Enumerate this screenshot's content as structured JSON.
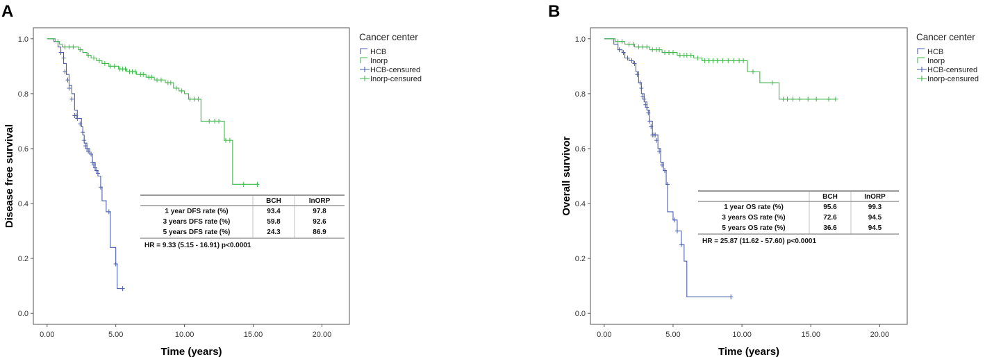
{
  "chart_data": [
    {
      "panel": "A",
      "type": "line",
      "xlabel": "Time (years)",
      "ylabel": "Disease free survival",
      "x_ticks": [
        "0.00",
        "5.00",
        "10.00",
        "15.00",
        "20.00"
      ],
      "y_ticks": [
        "0.0",
        "0.2",
        "0.4",
        "0.6",
        "0.8",
        "1.0"
      ],
      "xlim": [
        -1,
        22
      ],
      "ylim": [
        -0.04,
        1.04
      ],
      "legend": {
        "title": "Cancer center",
        "entries": [
          "HCB",
          "Inorp",
          "HCB-censured",
          "Inorp-censured"
        ]
      },
      "colors": {
        "HCB": "#4a5fad",
        "Inorp": "#3fb84a"
      },
      "series": [
        {
          "name": "HCB",
          "steps": [
            [
              0,
              1.0
            ],
            [
              0.5,
              0.99
            ],
            [
              0.8,
              0.97
            ],
            [
              1.0,
              0.95
            ],
            [
              1.2,
              0.91
            ],
            [
              1.4,
              0.87
            ],
            [
              1.6,
              0.83
            ],
            [
              1.8,
              0.8
            ],
            [
              2.0,
              0.74
            ],
            [
              2.2,
              0.71
            ],
            [
              2.5,
              0.68
            ],
            [
              2.6,
              0.65
            ],
            [
              2.7,
              0.62
            ],
            [
              2.9,
              0.6
            ],
            [
              3.1,
              0.58
            ],
            [
              3.3,
              0.55
            ],
            [
              3.5,
              0.52
            ],
            [
              3.7,
              0.5
            ],
            [
              3.9,
              0.46
            ],
            [
              4.0,
              0.41
            ],
            [
              4.3,
              0.37
            ],
            [
              4.6,
              0.24
            ],
            [
              5.0,
              0.18
            ],
            [
              5.1,
              0.09
            ]
          ],
          "end_x": 5.6,
          "censored": [
            [
              1.0,
              0.95
            ],
            [
              1.2,
              0.93
            ],
            [
              1.3,
              0.88
            ],
            [
              1.5,
              0.85
            ],
            [
              1.6,
              0.82
            ],
            [
              1.8,
              0.78
            ],
            [
              2.0,
              0.72
            ],
            [
              2.1,
              0.72
            ],
            [
              2.2,
              0.71
            ],
            [
              2.4,
              0.69
            ],
            [
              2.6,
              0.66
            ],
            [
              2.7,
              0.63
            ],
            [
              2.8,
              0.61
            ],
            [
              2.9,
              0.6
            ],
            [
              3.0,
              0.59
            ],
            [
              3.2,
              0.58
            ],
            [
              3.3,
              0.55
            ],
            [
              3.4,
              0.54
            ],
            [
              3.5,
              0.53
            ],
            [
              3.6,
              0.52
            ],
            [
              3.7,
              0.51
            ],
            [
              3.9,
              0.46
            ],
            [
              4.5,
              0.37
            ],
            [
              5.0,
              0.18
            ],
            [
              5.5,
              0.09
            ]
          ]
        },
        {
          "name": "Inorp",
          "steps": [
            [
              0,
              1.0
            ],
            [
              0.6,
              0.99
            ],
            [
              0.9,
              0.98
            ],
            [
              1.1,
              0.97
            ],
            [
              2.3,
              0.96
            ],
            [
              2.6,
              0.95
            ],
            [
              2.9,
              0.94
            ],
            [
              3.2,
              0.93
            ],
            [
              3.6,
              0.92
            ],
            [
              4.0,
              0.91
            ],
            [
              4.5,
              0.9
            ],
            [
              5.2,
              0.89
            ],
            [
              5.8,
              0.88
            ],
            [
              6.5,
              0.87
            ],
            [
              7.2,
              0.86
            ],
            [
              7.8,
              0.85
            ],
            [
              8.6,
              0.84
            ],
            [
              9.2,
              0.82
            ],
            [
              9.6,
              0.81
            ],
            [
              10.0,
              0.8
            ],
            [
              10.3,
              0.78
            ],
            [
              11.0,
              0.78
            ],
            [
              11.2,
              0.7
            ],
            [
              12.7,
              0.7
            ],
            [
              12.9,
              0.63
            ],
            [
              13.5,
              0.47
            ]
          ],
          "end_x": 15.3,
          "censored": [
            [
              0.8,
              0.99
            ],
            [
              1.3,
              0.97
            ],
            [
              1.6,
              0.97
            ],
            [
              1.9,
              0.97
            ],
            [
              2.4,
              0.96
            ],
            [
              3.0,
              0.94
            ],
            [
              3.4,
              0.93
            ],
            [
              3.8,
              0.92
            ],
            [
              4.2,
              0.91
            ],
            [
              4.6,
              0.9
            ],
            [
              4.9,
              0.9
            ],
            [
              5.3,
              0.89
            ],
            [
              5.5,
              0.89
            ],
            [
              5.7,
              0.89
            ],
            [
              6.0,
              0.88
            ],
            [
              6.2,
              0.88
            ],
            [
              6.4,
              0.88
            ],
            [
              6.8,
              0.87
            ],
            [
              7.0,
              0.87
            ],
            [
              7.4,
              0.86
            ],
            [
              7.6,
              0.86
            ],
            [
              8.0,
              0.85
            ],
            [
              8.3,
              0.85
            ],
            [
              8.8,
              0.84
            ],
            [
              9.0,
              0.84
            ],
            [
              9.4,
              0.82
            ],
            [
              9.8,
              0.81
            ],
            [
              10.4,
              0.78
            ],
            [
              10.7,
              0.78
            ],
            [
              11.0,
              0.78
            ],
            [
              11.8,
              0.7
            ],
            [
              12.2,
              0.7
            ],
            [
              12.5,
              0.7
            ],
            [
              13.0,
              0.63
            ],
            [
              13.3,
              0.63
            ],
            [
              14.3,
              0.47
            ],
            [
              15.3,
              0.47
            ]
          ]
        }
      ],
      "table": {
        "headers": [
          "",
          "BCH",
          "InORP"
        ],
        "rows": [
          [
            "1 year DFS rate (%)",
            "93.4",
            "97.8"
          ],
          [
            "3 years DFS rate (%)",
            "59.8",
            "92.6"
          ],
          [
            "5 years DFS rate (%)",
            "24.3",
            "86.9"
          ]
        ],
        "footer": "HR = 9.33 (5.15 - 16.91) p<0.0001"
      }
    },
    {
      "panel": "B",
      "type": "line",
      "xlabel": "Time (years)",
      "ylabel": "Overall survivor",
      "x_ticks": [
        "0.00",
        "5.00",
        "10.00",
        "15.00",
        "20.00"
      ],
      "y_ticks": [
        "0.0",
        "0.2",
        "0.4",
        "0.6",
        "0.8",
        "1.0"
      ],
      "xlim": [
        -1,
        22
      ],
      "ylim": [
        -0.04,
        1.04
      ],
      "legend": {
        "title": "Cancer center",
        "entries": [
          "HCB",
          "Inorp",
          "HCB-censured",
          "Inorp-censured"
        ]
      },
      "colors": {
        "HCB": "#4a5fad",
        "Inorp": "#3fb84a"
      },
      "series": [
        {
          "name": "HCB",
          "steps": [
            [
              0,
              1.0
            ],
            [
              0.7,
              0.98
            ],
            [
              1.0,
              0.96
            ],
            [
              1.3,
              0.95
            ],
            [
              1.5,
              0.93
            ],
            [
              1.8,
              0.92
            ],
            [
              2.1,
              0.91
            ],
            [
              2.3,
              0.88
            ],
            [
              2.5,
              0.84
            ],
            [
              2.7,
              0.8
            ],
            [
              2.9,
              0.77
            ],
            [
              3.1,
              0.74
            ],
            [
              3.3,
              0.7
            ],
            [
              3.5,
              0.65
            ],
            [
              3.9,
              0.6
            ],
            [
              4.1,
              0.55
            ],
            [
              4.3,
              0.52
            ],
            [
              4.5,
              0.47
            ],
            [
              4.6,
              0.37
            ],
            [
              5.0,
              0.34
            ],
            [
              5.3,
              0.3
            ],
            [
              5.6,
              0.25
            ],
            [
              5.8,
              0.19
            ],
            [
              6.0,
              0.06
            ]
          ],
          "end_x": 9.2,
          "censored": [
            [
              1.1,
              0.96
            ],
            [
              1.4,
              0.95
            ],
            [
              1.7,
              0.93
            ],
            [
              2.0,
              0.92
            ],
            [
              2.2,
              0.91
            ],
            [
              2.4,
              0.87
            ],
            [
              2.6,
              0.84
            ],
            [
              2.7,
              0.82
            ],
            [
              2.8,
              0.79
            ],
            [
              2.9,
              0.78
            ],
            [
              3.0,
              0.76
            ],
            [
              3.1,
              0.75
            ],
            [
              3.2,
              0.73
            ],
            [
              3.3,
              0.7
            ],
            [
              3.4,
              0.68
            ],
            [
              3.5,
              0.65
            ],
            [
              3.6,
              0.65
            ],
            [
              3.7,
              0.65
            ],
            [
              3.8,
              0.63
            ],
            [
              4.0,
              0.59
            ],
            [
              4.2,
              0.54
            ],
            [
              4.4,
              0.52
            ],
            [
              4.6,
              0.47
            ],
            [
              5.1,
              0.34
            ],
            [
              5.3,
              0.3
            ],
            [
              5.6,
              0.25
            ],
            [
              9.2,
              0.06
            ]
          ]
        },
        {
          "name": "Inorp",
          "steps": [
            [
              0,
              1.0
            ],
            [
              0.8,
              0.99
            ],
            [
              1.5,
              0.98
            ],
            [
              2.2,
              0.97
            ],
            [
              3.3,
              0.96
            ],
            [
              4.2,
              0.95
            ],
            [
              5.3,
              0.94
            ],
            [
              6.5,
              0.93
            ],
            [
              7.1,
              0.92
            ],
            [
              10.2,
              0.92
            ],
            [
              10.4,
              0.88
            ],
            [
              11.2,
              0.88
            ],
            [
              11.3,
              0.84
            ],
            [
              12.5,
              0.84
            ],
            [
              12.7,
              0.78
            ]
          ],
          "end_x": 16.8,
          "censored": [
            [
              1.0,
              0.99
            ],
            [
              1.3,
              0.99
            ],
            [
              1.8,
              0.98
            ],
            [
              2.1,
              0.98
            ],
            [
              2.5,
              0.97
            ],
            [
              2.8,
              0.97
            ],
            [
              3.1,
              0.97
            ],
            [
              3.5,
              0.96
            ],
            [
              3.8,
              0.96
            ],
            [
              4.0,
              0.96
            ],
            [
              4.4,
              0.95
            ],
            [
              4.7,
              0.95
            ],
            [
              5.0,
              0.95
            ],
            [
              5.5,
              0.94
            ],
            [
              5.8,
              0.94
            ],
            [
              6.0,
              0.94
            ],
            [
              6.3,
              0.94
            ],
            [
              6.8,
              0.93
            ],
            [
              7.3,
              0.92
            ],
            [
              7.6,
              0.92
            ],
            [
              7.9,
              0.92
            ],
            [
              8.2,
              0.92
            ],
            [
              8.6,
              0.92
            ],
            [
              9.0,
              0.92
            ],
            [
              9.4,
              0.92
            ],
            [
              9.8,
              0.92
            ],
            [
              10.1,
              0.92
            ],
            [
              10.8,
              0.88
            ],
            [
              12.2,
              0.84
            ],
            [
              13.0,
              0.78
            ],
            [
              13.3,
              0.78
            ],
            [
              13.7,
              0.78
            ],
            [
              14.2,
              0.78
            ],
            [
              14.8,
              0.78
            ],
            [
              15.4,
              0.78
            ],
            [
              16.3,
              0.78
            ],
            [
              16.8,
              0.78
            ]
          ]
        }
      ],
      "table": {
        "headers": [
          "",
          "BCH",
          "InORP"
        ],
        "rows": [
          [
            "1 year OS rate (%)",
            "95.6",
            "99.3"
          ],
          [
            "3 years OS rate (%)",
            "72.6",
            "94.5"
          ],
          [
            "5 years OS rate (%)",
            "36.6",
            "94.5"
          ]
        ],
        "footer": "HR = 25.87 (11.62 - 57.60) p<0.0001"
      }
    }
  ]
}
